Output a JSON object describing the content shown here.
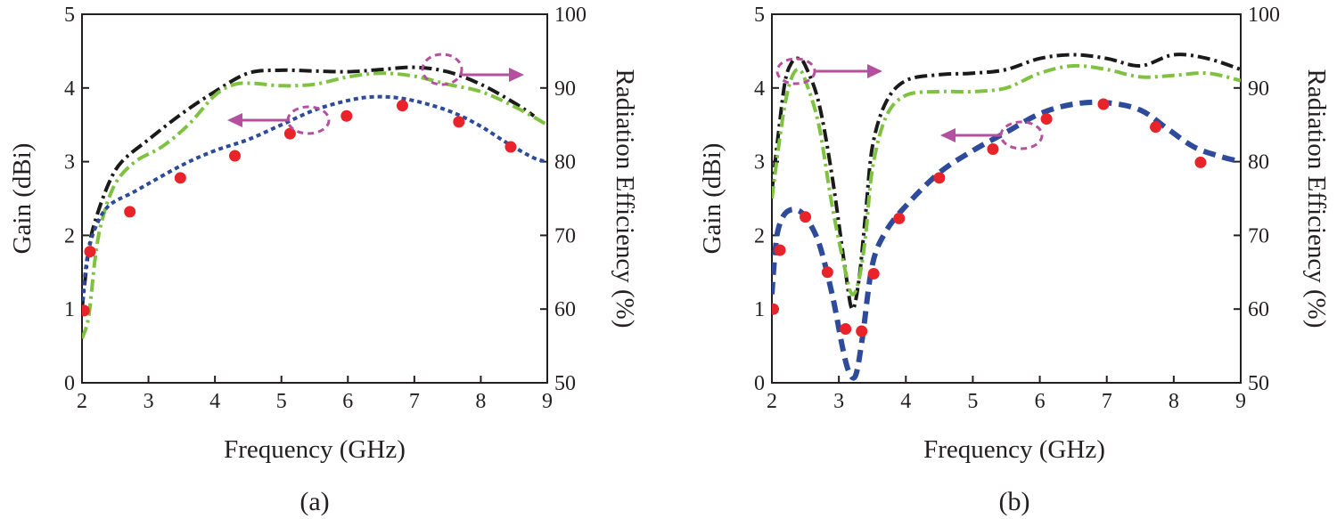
{
  "chart_data": [
    {
      "type": "line",
      "panel_label": "(a)",
      "xlabel": "Frequency (GHz)",
      "ylabel_left": "Gain (dBi)",
      "ylabel_right": "Radiation Efficiency (%)",
      "xlim": [
        2,
        9
      ],
      "ylim_left": [
        0,
        5
      ],
      "ylim_right": [
        50,
        100
      ],
      "x_ticks": [
        "2",
        "3",
        "4",
        "5",
        "6",
        "7",
        "8",
        "9"
      ],
      "y_left_ticks": [
        "0",
        "1",
        "2",
        "3",
        "4",
        "5"
      ],
      "y_right_ticks": [
        "50",
        "60",
        "70",
        "80",
        "90",
        "100"
      ],
      "series": [
        {
          "name": "efficiency-black",
          "axis": "right",
          "color": "#1a1a1a",
          "style": "dashdot",
          "x": [
            2.0,
            2.1,
            2.2,
            2.4,
            2.6,
            3.0,
            3.5,
            4.0,
            4.5,
            5.0,
            5.5,
            6.0,
            6.5,
            7.0,
            7.5,
            8.0,
            8.5,
            8.8
          ],
          "y": [
            60,
            68,
            72,
            77,
            80,
            83,
            86.5,
            89.5,
            92,
            92.4,
            92.3,
            92.2,
            92.5,
            92.8,
            92.2,
            90.5,
            88,
            86.2
          ]
        },
        {
          "name": "efficiency-green",
          "axis": "right",
          "color": "#7fc242",
          "style": "dashdot",
          "x": [
            2.0,
            2.1,
            2.2,
            2.3,
            2.5,
            2.8,
            3.2,
            3.6,
            4.0,
            4.3,
            4.6,
            5.0,
            5.5,
            6.0,
            6.5,
            7.0,
            7.5,
            8.0,
            8.5,
            9.0
          ],
          "y": [
            56,
            59,
            67,
            72,
            77,
            80,
            82,
            85,
            89,
            90.5,
            90.6,
            90.3,
            90.5,
            91.5,
            92,
            91.6,
            90.5,
            89.5,
            87.5,
            85
          ]
        },
        {
          "name": "gain-blue",
          "axis": "left",
          "color": "#2e4b9b",
          "style": "dotted",
          "x": [
            2.0,
            2.05,
            2.1,
            2.2,
            2.4,
            2.8,
            3.5,
            4.0,
            4.5,
            5.0,
            5.5,
            6.0,
            6.4,
            6.8,
            7.2,
            7.6,
            8.0,
            8.4,
            8.8,
            9.0
          ],
          "y": [
            1.0,
            1.5,
            1.8,
            2.1,
            2.4,
            2.6,
            2.95,
            3.15,
            3.3,
            3.5,
            3.7,
            3.83,
            3.88,
            3.86,
            3.78,
            3.66,
            3.48,
            3.25,
            3.05,
            3.0
          ]
        },
        {
          "name": "measured-red",
          "axis": "left",
          "color": "#e8232a",
          "style": "points",
          "x": [
            2.03,
            2.12,
            2.72,
            3.48,
            4.3,
            5.13,
            5.98,
            6.82,
            7.67,
            8.45
          ],
          "y": [
            0.98,
            1.78,
            2.32,
            2.78,
            3.08,
            3.38,
            3.62,
            3.76,
            3.54,
            3.2
          ]
        }
      ]
    },
    {
      "type": "line",
      "panel_label": "(b)",
      "xlabel": "Frequency (GHz)",
      "ylabel_left": "Gain (dBi)",
      "ylabel_right": "Radiation Efficiency (%)",
      "xlim": [
        2,
        9
      ],
      "ylim_left": [
        0,
        5
      ],
      "ylim_right": [
        50,
        100
      ],
      "x_ticks": [
        "2",
        "3",
        "4",
        "5",
        "6",
        "7",
        "8",
        "9"
      ],
      "y_left_ticks": [
        "0",
        "1",
        "2",
        "3",
        "4",
        "5"
      ],
      "y_right_ticks": [
        "50",
        "60",
        "70",
        "80",
        "90",
        "100"
      ],
      "series": [
        {
          "name": "efficiency-black",
          "axis": "right",
          "color": "#1a1a1a",
          "style": "dashdot",
          "x": [
            2.0,
            2.1,
            2.2,
            2.3,
            2.4,
            2.5,
            2.7,
            2.9,
            3.1,
            3.2,
            3.3,
            3.4,
            3.5,
            3.7,
            4.0,
            4.5,
            5.0,
            5.5,
            6.0,
            6.5,
            7.0,
            7.5,
            8.0,
            8.5,
            9.0
          ],
          "y": [
            76,
            84,
            91,
            93.5,
            94,
            93,
            88,
            78,
            65,
            60,
            64,
            73,
            82,
            88,
            91,
            91.8,
            92,
            92.5,
            94,
            94.5,
            94,
            93,
            94.5,
            94,
            92.5
          ]
        },
        {
          "name": "efficiency-green",
          "axis": "right",
          "color": "#7fc242",
          "style": "dashdot",
          "x": [
            2.0,
            2.1,
            2.2,
            2.3,
            2.4,
            2.5,
            2.7,
            2.9,
            3.1,
            3.2,
            3.3,
            3.4,
            3.5,
            3.7,
            4.0,
            4.5,
            5.0,
            5.5,
            6.0,
            6.5,
            7.0,
            7.5,
            8.0,
            8.5,
            9.0
          ],
          "y": [
            75,
            82,
            88,
            91.5,
            92.5,
            91,
            85,
            74,
            65,
            62,
            64,
            70,
            79,
            86,
            89,
            89.5,
            89.5,
            90,
            92,
            93,
            92.5,
            91.5,
            91.7,
            92,
            91
          ]
        },
        {
          "name": "gain-blue",
          "axis": "left",
          "color": "#2e4b9b",
          "style": "dashed",
          "x": [
            2.0,
            2.05,
            2.1,
            2.2,
            2.35,
            2.5,
            2.7,
            2.9,
            3.05,
            3.15,
            3.25,
            3.35,
            3.5,
            3.7,
            4.0,
            4.5,
            5.0,
            5.5,
            6.0,
            6.5,
            7.0,
            7.5,
            7.9,
            8.3,
            8.7,
            9.0
          ],
          "y": [
            1.2,
            1.8,
            2.1,
            2.3,
            2.35,
            2.25,
            1.9,
            1.2,
            0.5,
            0.15,
            0.1,
            0.6,
            1.6,
            2.05,
            2.4,
            2.85,
            3.15,
            3.4,
            3.65,
            3.78,
            3.8,
            3.7,
            3.45,
            3.2,
            3.07,
            3.0
          ]
        },
        {
          "name": "measured-red",
          "axis": "left",
          "color": "#e8232a",
          "style": "points",
          "x": [
            2.02,
            2.12,
            2.5,
            2.83,
            3.1,
            3.34,
            3.52,
            3.9,
            4.5,
            5.3,
            6.1,
            6.95,
            7.73,
            8.4
          ],
          "y": [
            1.0,
            1.8,
            2.25,
            1.5,
            0.73,
            0.7,
            1.48,
            2.23,
            2.78,
            3.17,
            3.58,
            3.78,
            3.47,
            2.99
          ]
        }
      ]
    }
  ]
}
